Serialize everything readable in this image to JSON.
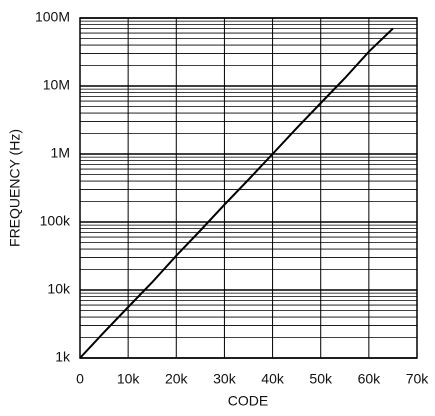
{
  "chart_data": {
    "type": "line",
    "x_label": "CODE",
    "y_label": "FREQUENCY (Hz)",
    "x": [
      0,
      5000,
      10000,
      15000,
      20000,
      25000,
      30000,
      35000,
      40000,
      45000,
      50000,
      55000,
      60000,
      65000
    ],
    "series": [
      {
        "color": "#000000",
        "values": [
          1000,
          2400,
          5600,
          13000,
          32000,
          75000,
          180000,
          420000,
          1000000,
          2400000,
          5600000,
          13000000,
          32000000,
          70000000
        ]
      }
    ],
    "xlim": [
      0,
      70000
    ],
    "xticks": [
      0,
      {
        "value": 10000,
        "label": "10k"
      },
      {
        "value": 20000,
        "label": "20k"
      },
      {
        "value": 30000,
        "label": "30k"
      },
      {
        "value": 40000,
        "label": "40k"
      },
      {
        "value": 50000,
        "label": "50k"
      },
      {
        "value": 60000,
        "label": "60k"
      },
      {
        "value": 70000,
        "label": "70k"
      }
    ],
    "ylim": [
      1000,
      100000000
    ],
    "yticks": [
      {
        "value": 1000,
        "label": "1k"
      },
      {
        "value": 10000,
        "label": "10k"
      },
      {
        "value": 100000,
        "label": "100k"
      },
      {
        "value": 1000000,
        "label": "1M"
      },
      {
        "value": 10000000,
        "label": "10M"
      },
      {
        "value": 100000000,
        "label": "100M"
      }
    ],
    "y_scale": "log",
    "grid": true,
    "minor_grid": true
  }
}
